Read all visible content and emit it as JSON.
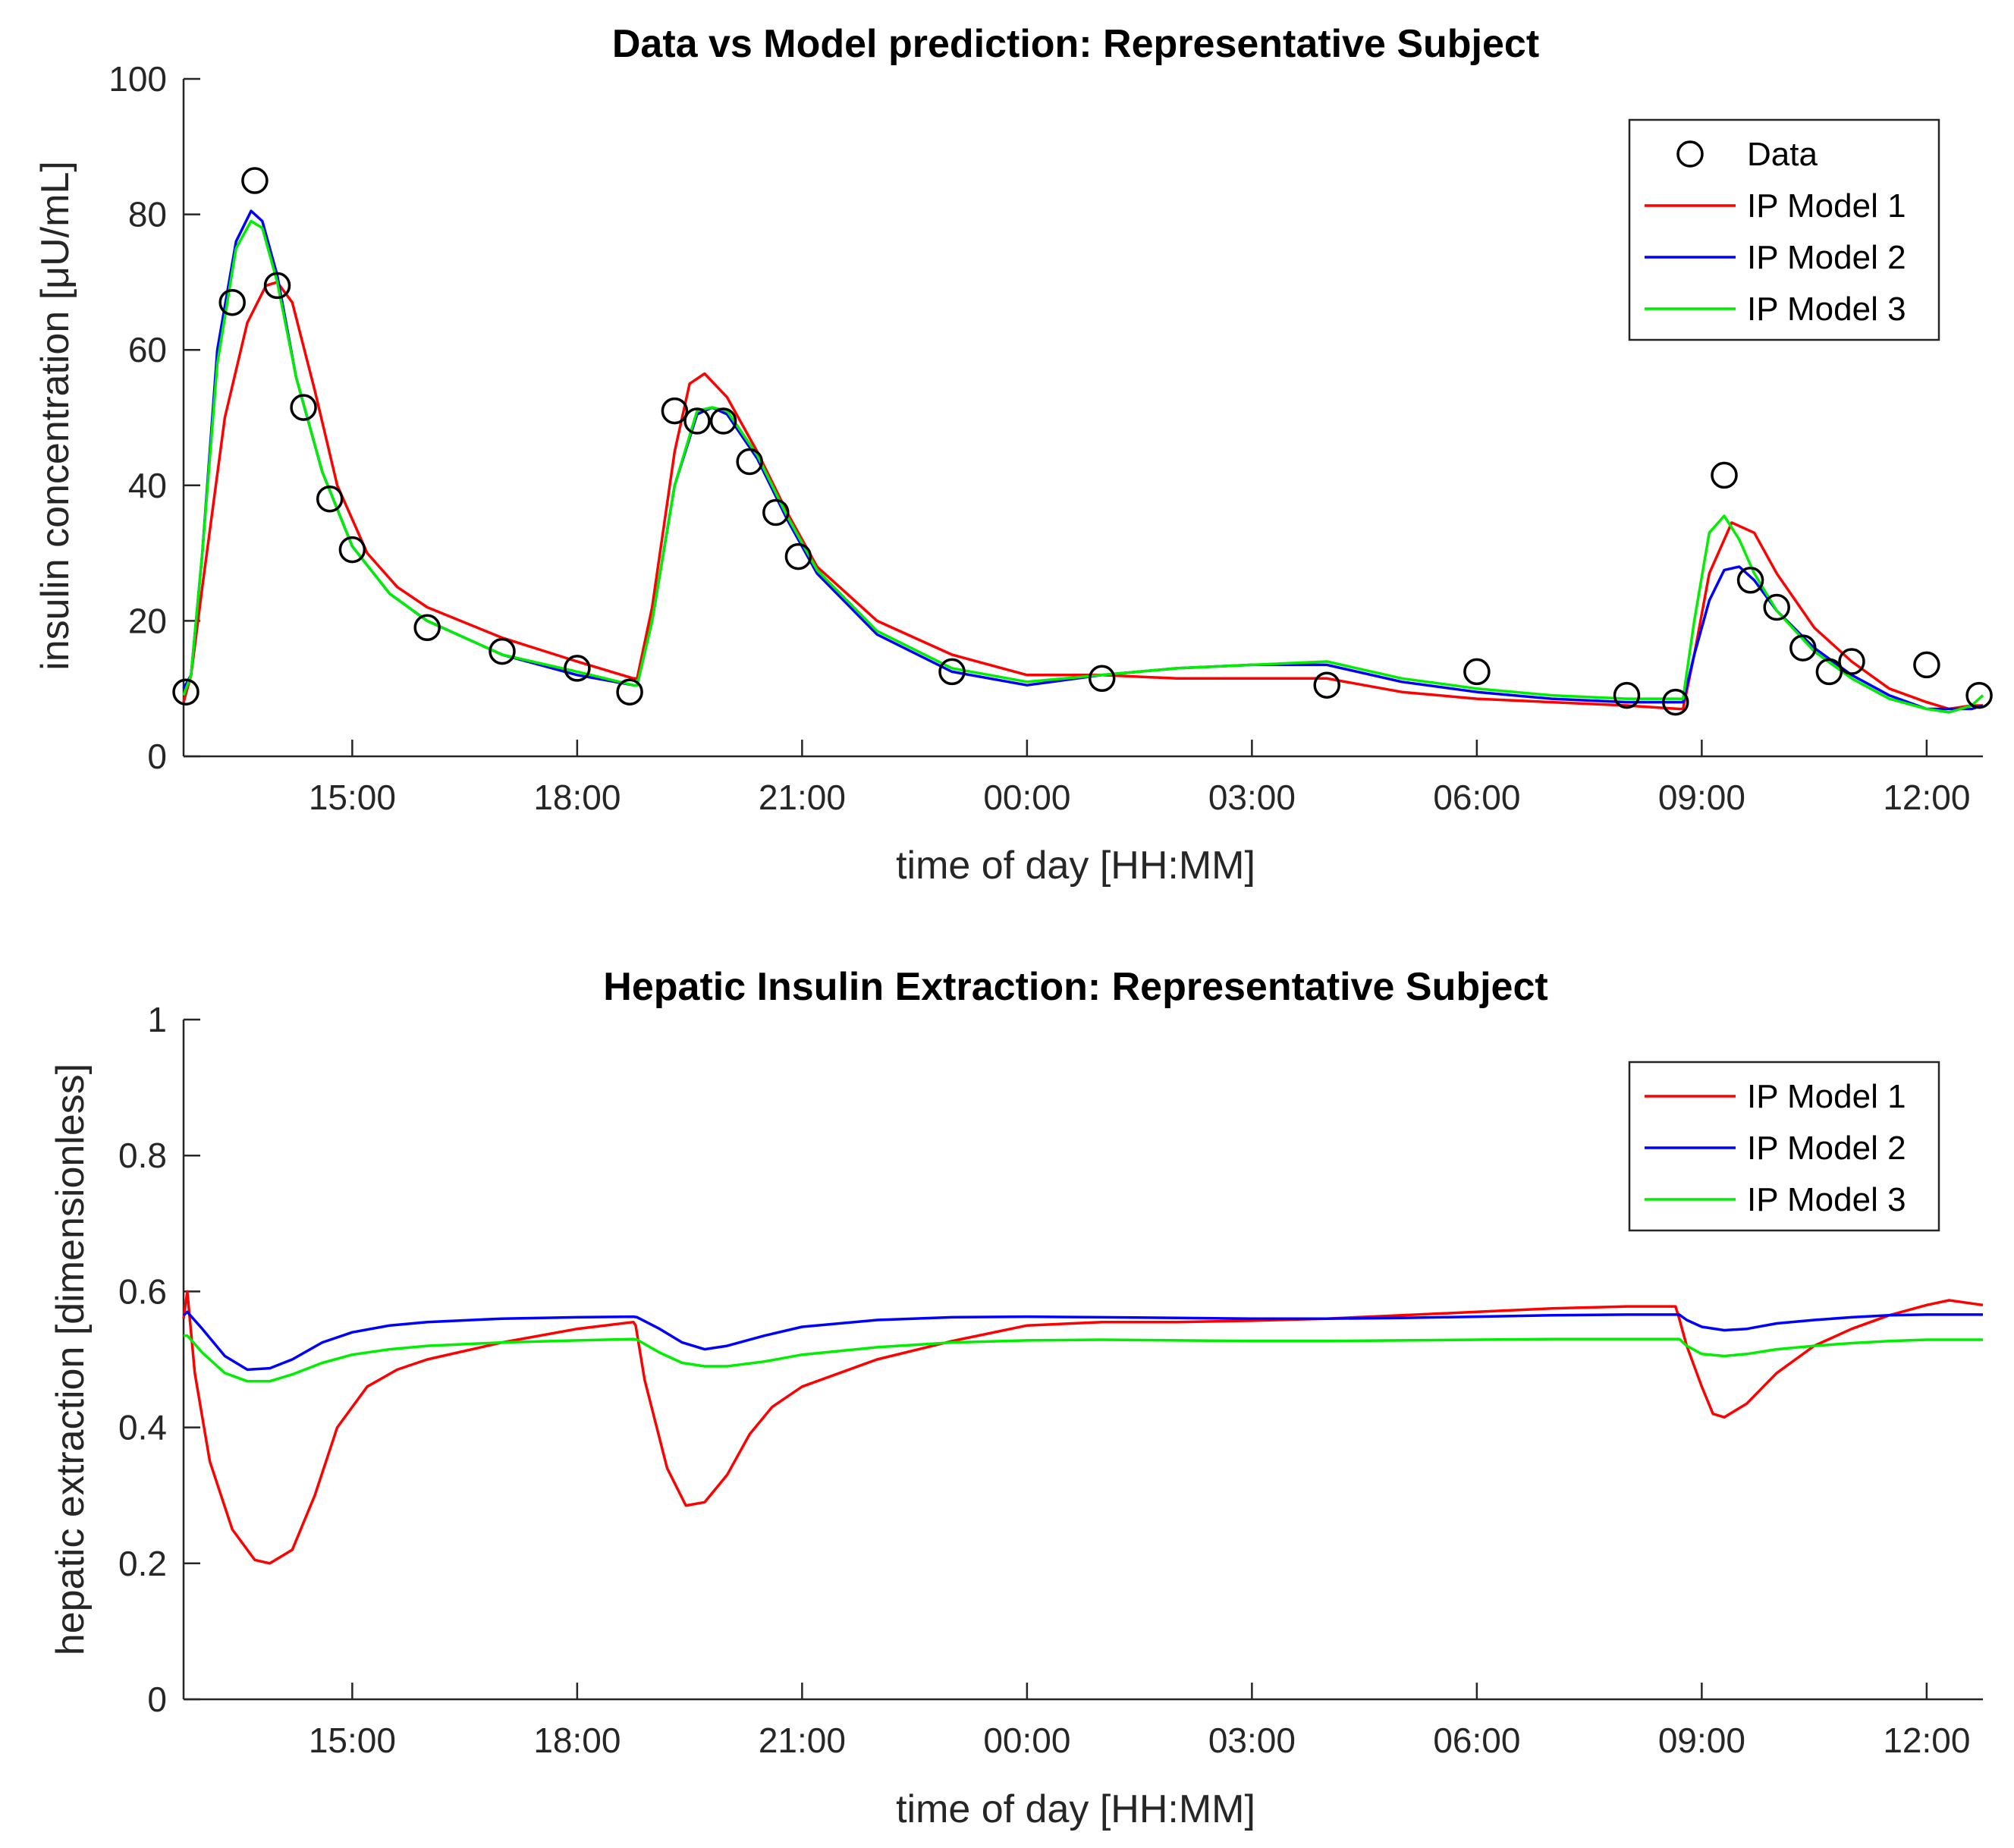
{
  "chart_data": [
    {
      "type": "line",
      "title": "Data vs Model prediction: Representative Subject",
      "xlabel": "time of day [HH:MM]",
      "ylabel": "insulin concentration [μU/mL]",
      "xlim": [
        12.75,
        36.75
      ],
      "ylim": [
        0,
        100
      ],
      "grid": false,
      "legend_position": "top-right",
      "x_ticks": [
        15,
        18,
        21,
        24,
        27,
        30,
        33,
        36
      ],
      "x_tick_labels": [
        "15:00",
        "18:00",
        "21:00",
        "00:00",
        "03:00",
        "06:00",
        "09:00",
        "12:00"
      ],
      "y_ticks": [
        0,
        20,
        40,
        60,
        80,
        100
      ],
      "y_tick_labels": [
        "0",
        "20",
        "40",
        "60",
        "80",
        "100"
      ],
      "legend": [
        "Data",
        "IP Model 1",
        "IP Model 2",
        "IP Model 3"
      ],
      "scatter": {
        "name": "Data",
        "color": "#000000",
        "x": [
          12.78,
          13.4,
          13.7,
          14.0,
          14.35,
          14.7,
          15.0,
          16.0,
          17.0,
          18.0,
          18.7,
          19.3,
          19.6,
          19.95,
          20.3,
          20.65,
          20.95,
          23.0,
          25.0,
          28.0,
          30.0,
          32.0,
          32.65,
          33.3,
          33.65,
          34.0,
          34.35,
          34.7,
          35.0,
          36.0,
          36.7
        ],
        "y": [
          9.5,
          67,
          85,
          69.5,
          51.5,
          38,
          30.5,
          19,
          15.5,
          13,
          9.5,
          51,
          49.5,
          49.5,
          43.5,
          36,
          29.5,
          12.5,
          11.5,
          10.5,
          12.5,
          9,
          8,
          41.5,
          26,
          22,
          16,
          12.5,
          14,
          13.5,
          9
        ]
      },
      "series": [
        {
          "name": "IP Model 1",
          "color": "#ff0000",
          "x": [
            12.75,
            12.85,
            13.0,
            13.3,
            13.6,
            13.85,
            14.0,
            14.2,
            14.5,
            14.8,
            15.2,
            15.6,
            16.0,
            17.0,
            18.0,
            18.75,
            18.8,
            19.0,
            19.3,
            19.5,
            19.7,
            20.0,
            20.4,
            20.8,
            21.2,
            22.0,
            23.0,
            24.0,
            25.0,
            26.0,
            27.0,
            28.0,
            29.0,
            30.0,
            31.0,
            32.0,
            32.7,
            32.75,
            32.9,
            33.1,
            33.4,
            33.7,
            34.0,
            34.5,
            35.0,
            35.5,
            36.0,
            36.3,
            36.6,
            36.75
          ],
          "y": [
            8,
            12,
            25,
            50,
            64,
            69.5,
            70,
            67,
            54,
            40,
            30,
            25,
            22,
            17.5,
            14,
            11.5,
            11.5,
            22,
            45,
            55,
            56.5,
            53,
            45,
            36,
            28,
            20,
            15,
            12,
            12,
            11.5,
            11.5,
            11.5,
            9.5,
            8.5,
            8,
            7.5,
            7,
            7,
            15,
            27,
            34.5,
            33,
            27,
            19,
            14,
            10,
            8,
            7,
            7.5,
            7.5
          ]
        },
        {
          "name": "IP Model 2",
          "color": "#0000ff",
          "x": [
            12.75,
            12.85,
            13.0,
            13.2,
            13.45,
            13.65,
            13.8,
            14.0,
            14.25,
            14.6,
            15.0,
            15.5,
            16.0,
            17.0,
            18.0,
            18.75,
            18.8,
            19.0,
            19.3,
            19.6,
            19.8,
            20.0,
            20.4,
            20.8,
            21.2,
            22.0,
            23.0,
            24.0,
            25.0,
            26.0,
            27.0,
            28.0,
            29.0,
            30.0,
            31.0,
            32.0,
            32.7,
            32.75,
            32.9,
            33.1,
            33.3,
            33.5,
            33.7,
            34.0,
            34.5,
            35.0,
            35.5,
            36.0,
            36.3,
            36.6,
            36.75
          ],
          "y": [
            10,
            12,
            30,
            60,
            76,
            80.5,
            79,
            71,
            56,
            42,
            31,
            24,
            20,
            15,
            12,
            10.5,
            10.5,
            20,
            40,
            50.5,
            51.5,
            50.5,
            44,
            35,
            27,
            18,
            12.5,
            10.5,
            12,
            13,
            13.5,
            13.5,
            11,
            9.5,
            8.5,
            8,
            8,
            8,
            15,
            23,
            27.5,
            28,
            26,
            21.5,
            16,
            12,
            9,
            7,
            7,
            7,
            7.5
          ]
        },
        {
          "name": "IP Model 3",
          "color": "#00ee00",
          "x": [
            12.75,
            12.85,
            13.0,
            13.2,
            13.45,
            13.65,
            13.8,
            14.0,
            14.25,
            14.6,
            15.0,
            15.5,
            16.0,
            17.0,
            18.0,
            18.75,
            18.8,
            19.0,
            19.3,
            19.6,
            19.8,
            20.0,
            20.4,
            20.8,
            21.2,
            22.0,
            23.0,
            24.0,
            25.0,
            26.0,
            27.0,
            28.0,
            29.0,
            30.0,
            31.0,
            32.0,
            32.7,
            32.75,
            32.9,
            33.1,
            33.3,
            33.5,
            33.7,
            34.0,
            34.5,
            35.0,
            35.5,
            36.0,
            36.3,
            36.6,
            36.75
          ],
          "y": [
            9,
            12,
            30,
            58,
            75,
            79,
            78,
            70,
            56,
            42,
            31,
            24,
            20,
            15,
            12.5,
            10.5,
            10.5,
            20,
            40,
            51,
            51.5,
            51,
            44.5,
            35.5,
            27.5,
            18.5,
            13,
            11,
            12,
            13,
            13.5,
            14,
            11.5,
            10,
            9,
            8.5,
            8.5,
            8.5,
            20,
            33,
            35.5,
            32,
            27,
            21.5,
            15.5,
            11.5,
            8.5,
            7,
            6.5,
            7.5,
            9
          ]
        }
      ]
    },
    {
      "type": "line",
      "title": "Hepatic Insulin Extraction: Representative Subject",
      "xlabel": "time of day [HH:MM]",
      "ylabel": "hepatic extraction [dimensionless]",
      "xlim": [
        12.75,
        36.75
      ],
      "ylim": [
        0,
        1
      ],
      "grid": false,
      "legend_position": "top-right",
      "x_ticks": [
        15,
        18,
        21,
        24,
        27,
        30,
        33,
        36
      ],
      "x_tick_labels": [
        "15:00",
        "18:00",
        "21:00",
        "00:00",
        "03:00",
        "06:00",
        "09:00",
        "12:00"
      ],
      "y_ticks": [
        0,
        0.2,
        0.4,
        0.6,
        0.8,
        1
      ],
      "y_tick_labels": [
        "0",
        "0.2",
        "0.4",
        "0.6",
        "0.8",
        "1"
      ],
      "legend": [
        "IP Model 1",
        "IP Model 2",
        "IP Model 3"
      ],
      "series": [
        {
          "name": "IP Model 1",
          "color": "#ff0000",
          "x": [
            12.75,
            12.8,
            12.9,
            13.1,
            13.4,
            13.7,
            13.9,
            14.2,
            14.5,
            14.8,
            15.2,
            15.6,
            16.0,
            17.0,
            18.0,
            18.75,
            18.78,
            18.9,
            19.2,
            19.45,
            19.7,
            20.0,
            20.3,
            20.6,
            21.0,
            22.0,
            23.0,
            24.0,
            25.0,
            26.0,
            27.0,
            28.0,
            29.0,
            30.0,
            31.0,
            32.0,
            32.65,
            32.7,
            32.8,
            33.0,
            33.15,
            33.3,
            33.6,
            34.0,
            34.5,
            35.0,
            35.5,
            36.0,
            36.3,
            36.75
          ],
          "y": [
            0.56,
            0.6,
            0.48,
            0.35,
            0.25,
            0.205,
            0.2,
            0.22,
            0.3,
            0.4,
            0.46,
            0.485,
            0.5,
            0.525,
            0.545,
            0.555,
            0.55,
            0.47,
            0.34,
            0.285,
            0.29,
            0.33,
            0.39,
            0.43,
            0.46,
            0.5,
            0.527,
            0.55,
            0.555,
            0.555,
            0.557,
            0.56,
            0.565,
            0.57,
            0.575,
            0.578,
            0.578,
            0.56,
            0.52,
            0.46,
            0.42,
            0.415,
            0.435,
            0.48,
            0.52,
            0.545,
            0.565,
            0.58,
            0.587,
            0.58
          ]
        },
        {
          "name": "IP Model 2",
          "color": "#0000ff",
          "x": [
            12.75,
            12.8,
            13.0,
            13.3,
            13.6,
            13.9,
            14.2,
            14.6,
            15.0,
            15.5,
            16.0,
            17.0,
            18.0,
            18.75,
            18.8,
            19.1,
            19.4,
            19.7,
            20.0,
            20.5,
            21.0,
            22.0,
            23.0,
            24.0,
            25.0,
            26.0,
            27.0,
            28.0,
            29.0,
            30.0,
            31.0,
            32.0,
            32.7,
            32.8,
            33.0,
            33.3,
            33.6,
            34.0,
            34.5,
            35.0,
            35.5,
            36.0,
            36.75
          ],
          "y": [
            0.565,
            0.57,
            0.545,
            0.505,
            0.485,
            0.487,
            0.5,
            0.525,
            0.54,
            0.55,
            0.555,
            0.56,
            0.562,
            0.563,
            0.562,
            0.545,
            0.525,
            0.515,
            0.52,
            0.535,
            0.548,
            0.558,
            0.562,
            0.563,
            0.562,
            0.561,
            0.56,
            0.56,
            0.561,
            0.563,
            0.565,
            0.566,
            0.566,
            0.558,
            0.548,
            0.543,
            0.545,
            0.553,
            0.558,
            0.562,
            0.565,
            0.566,
            0.566
          ]
        },
        {
          "name": "IP Model 3",
          "color": "#00ee00",
          "x": [
            12.75,
            12.8,
            13.0,
            13.3,
            13.6,
            13.9,
            14.2,
            14.6,
            15.0,
            15.5,
            16.0,
            17.0,
            18.0,
            18.75,
            18.8,
            19.1,
            19.4,
            19.7,
            20.0,
            20.5,
            21.0,
            22.0,
            23.0,
            24.0,
            25.0,
            26.0,
            27.0,
            28.0,
            29.0,
            30.0,
            31.0,
            32.0,
            32.7,
            32.8,
            33.0,
            33.3,
            33.6,
            34.0,
            34.5,
            35.0,
            35.5,
            36.0,
            36.75
          ],
          "y": [
            0.535,
            0.535,
            0.51,
            0.48,
            0.468,
            0.468,
            0.478,
            0.495,
            0.507,
            0.515,
            0.52,
            0.525,
            0.528,
            0.53,
            0.529,
            0.51,
            0.495,
            0.49,
            0.49,
            0.497,
            0.507,
            0.518,
            0.525,
            0.528,
            0.529,
            0.528,
            0.527,
            0.527,
            0.528,
            0.529,
            0.53,
            0.53,
            0.53,
            0.52,
            0.508,
            0.505,
            0.508,
            0.515,
            0.52,
            0.524,
            0.527,
            0.529,
            0.529
          ]
        }
      ]
    }
  ]
}
